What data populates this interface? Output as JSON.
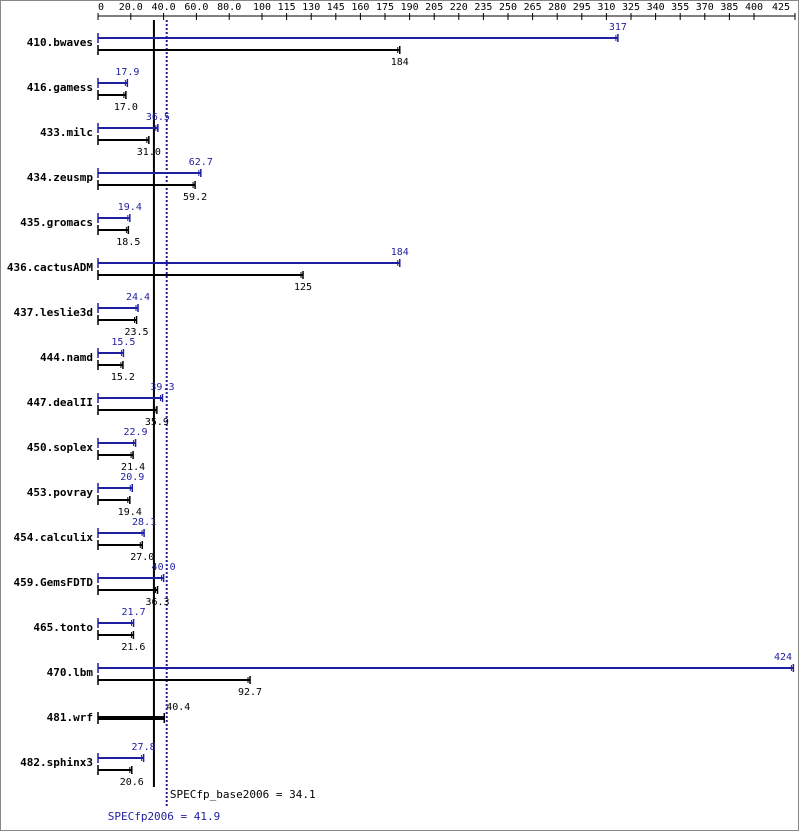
{
  "chart_data": {
    "type": "bar",
    "orientation": "horizontal",
    "categories": [
      "410.bwaves",
      "416.gamess",
      "433.milc",
      "434.zeusmp",
      "435.gromacs",
      "436.cactusADM",
      "437.leslie3d",
      "444.namd",
      "447.dealII",
      "450.soplex",
      "453.povray",
      "454.calculix",
      "459.GemsFDTD",
      "465.tonto",
      "470.lbm",
      "481.wrf",
      "482.sphinx3"
    ],
    "series": [
      {
        "color": "#1f1f9f",
        "values": [
          317,
          17.9,
          36.5,
          62.7,
          19.4,
          184,
          24.4,
          15.5,
          39.3,
          22.9,
          20.9,
          28.1,
          40.0,
          21.7,
          424,
          40.4,
          27.8
        ],
        "value_labels": [
          "317",
          "17.9",
          "36.5",
          "62.7",
          "19.4",
          "184",
          "24.4",
          "15.5",
          "39.3",
          "22.9",
          "20.9",
          "28.1",
          "40.0",
          "21.7",
          "424",
          "40.4",
          "27.8"
        ]
      },
      {
        "color": "#000000",
        "values": [
          184,
          17.0,
          31.0,
          59.2,
          18.5,
          125,
          23.5,
          15.2,
          35.9,
          21.4,
          19.4,
          27.0,
          36.3,
          21.6,
          92.7,
          40.4,
          20.6
        ],
        "value_labels": [
          "184",
          "17.0",
          "31.0",
          "59.2",
          "18.5",
          "125",
          "23.5",
          "15.2",
          "35.9",
          "21.4",
          "19.4",
          "27.0",
          "36.3",
          "21.6",
          "92.7",
          null,
          "20.6"
        ]
      }
    ],
    "xlim": [
      0,
      425
    ],
    "xticks": [
      0,
      {
        "value": 20,
        "label": "20.0"
      },
      {
        "value": 40,
        "label": "40.0"
      },
      {
        "value": 60,
        "label": "60.0"
      },
      {
        "value": 80,
        "label": "80.0"
      },
      100,
      115,
      130,
      145,
      160,
      175,
      190,
      205,
      220,
      235,
      250,
      265,
      280,
      295,
      310,
      325,
      340,
      355,
      370,
      385,
      400,
      425
    ],
    "reference_lines": [
      {
        "value": 34.1,
        "label": "SPECfp_base2006 = 34.1",
        "color": "#000000",
        "style": "solid"
      },
      {
        "value": 41.9,
        "label": "SPECfp2006 = 41.9",
        "color": "#1f1f9f",
        "style": "dotted"
      }
    ]
  }
}
